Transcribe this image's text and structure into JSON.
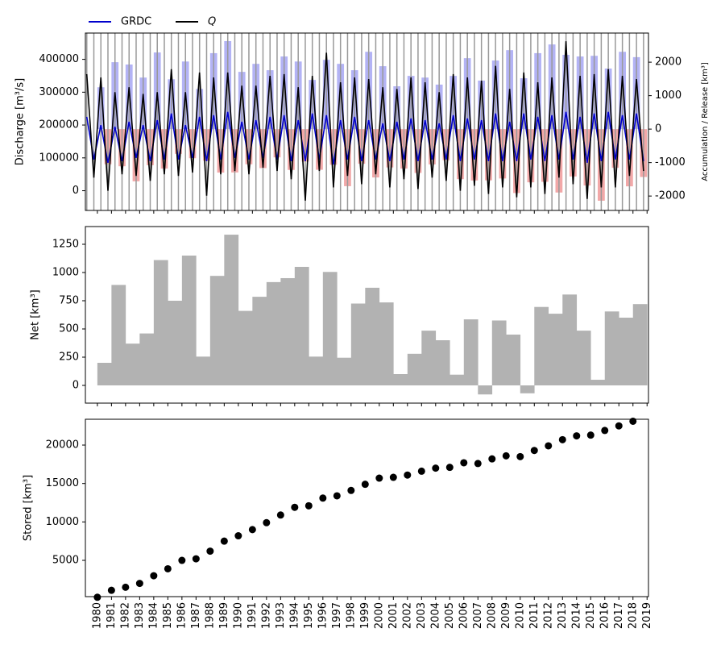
{
  "chart_data": [
    {
      "type": "line",
      "ylabel": "Discharge [m³/s]",
      "y2label": "Accumulation / Release [km³]",
      "legend": "top-left-outside",
      "xlim": [
        1979.15,
        2019.1
      ],
      "ylim": [
        -60000,
        480000
      ],
      "yticks": [
        0,
        100000,
        200000,
        300000,
        400000
      ],
      "y2lim": [
        -2430,
        2870
      ],
      "y2ticks": [
        -2000,
        -1000,
        0,
        1000,
        2000
      ],
      "season_line_color": "#999999",
      "x": [
        1979.25,
        1979.75,
        1980.25,
        1980.75,
        1981.25,
        1981.75,
        1982.25,
        1982.75,
        1983.25,
        1983.75,
        1984.25,
        1984.75,
        1985.25,
        1985.75,
        1986.25,
        1986.75,
        1987.25,
        1987.75,
        1988.25,
        1988.75,
        1989.25,
        1989.75,
        1990.25,
        1990.75,
        1991.25,
        1991.75,
        1992.25,
        1992.75,
        1993.25,
        1993.75,
        1994.25,
        1994.75,
        1995.25,
        1995.75,
        1996.25,
        1996.75,
        1997.25,
        1997.75,
        1998.25,
        1998.75,
        1999.25,
        1999.75,
        2000.25,
        2000.75,
        2001.25,
        2001.75,
        2002.25,
        2002.75,
        2003.25,
        2003.75,
        2004.25,
        2004.75,
        2005.25,
        2005.75,
        2006.25,
        2006.75,
        2007.25,
        2007.75,
        2008.25,
        2008.75,
        2009.25,
        2009.75,
        2010.25,
        2010.75,
        2011.25,
        2011.75,
        2012.25,
        2012.75,
        2013.25,
        2013.75,
        2014.25,
        2014.75,
        2015.25,
        2015.75,
        2016.25,
        2016.75,
        2017.25,
        2017.75,
        2018.25,
        2018.75
      ],
      "series": [
        {
          "name": "GRDC",
          "color": "#0000cc",
          "values": [
            225000,
            95000,
            200000,
            85000,
            195000,
            90000,
            210000,
            100000,
            200000,
            90000,
            215000,
            95000,
            235000,
            95000,
            200000,
            100000,
            225000,
            90000,
            230000,
            95000,
            240000,
            100000,
            210000,
            95000,
            215000,
            100000,
            225000,
            95000,
            230000,
            90000,
            215000,
            90000,
            235000,
            95000,
            230000,
            80000,
            215000,
            95000,
            225000,
            90000,
            215000,
            95000,
            205000,
            90000,
            210000,
            95000,
            220000,
            90000,
            215000,
            95000,
            205000,
            95000,
            230000,
            90000,
            220000,
            95000,
            215000,
            90000,
            235000,
            90000,
            210000,
            90000,
            235000,
            95000,
            225000,
            90000,
            230000,
            95000,
            240000,
            95000,
            225000,
            85000,
            235000,
            90000,
            240000,
            95000,
            230000,
            95000,
            235000,
            90000
          ]
        },
        {
          "name": "Q",
          "color": "#000000",
          "values": [
            355000,
            40000,
            345000,
            0,
            300000,
            50000,
            315000,
            45000,
            295000,
            30000,
            300000,
            50000,
            370000,
            45000,
            300000,
            55000,
            360000,
            -15000,
            345000,
            50000,
            360000,
            60000,
            320000,
            50000,
            320000,
            70000,
            350000,
            60000,
            355000,
            35000,
            315000,
            -30000,
            350000,
            60000,
            420000,
            10000,
            330000,
            45000,
            345000,
            20000,
            340000,
            50000,
            315000,
            10000,
            310000,
            35000,
            345000,
            5000,
            330000,
            40000,
            300000,
            30000,
            355000,
            0,
            345000,
            15000,
            335000,
            -10000,
            380000,
            10000,
            310000,
            -20000,
            360000,
            10000,
            330000,
            -10000,
            345000,
            40000,
            455000,
            20000,
            350000,
            -25000,
            355000,
            10000,
            370000,
            10000,
            350000,
            45000,
            340000,
            60000
          ]
        }
      ],
      "bar_x": [
        1980,
        1981,
        1982,
        1983,
        1984,
        1985,
        1986,
        1987,
        1988,
        1989,
        1990,
        1991,
        1992,
        1993,
        1994,
        1995,
        1996,
        1997,
        1998,
        1999,
        2000,
        2001,
        2002,
        2003,
        2004,
        2005,
        2006,
        2007,
        2008,
        2009,
        2010,
        2011,
        2012,
        2013,
        2014,
        2015,
        2016,
        2017,
        2018
      ],
      "bar_series": [
        {
          "color": "#b3b3f5",
          "axis": "y2",
          "values": [
            1250,
            2000,
            1930,
            1540,
            2290,
            1490,
            2020,
            1200,
            2270,
            2630,
            1710,
            1950,
            1760,
            2170,
            2020,
            1470,
            2070,
            1950,
            1760,
            2310,
            1880,
            1280,
            1590,
            1540,
            1330,
            1590,
            2120,
            1450,
            2050,
            2360,
            1520,
            2270,
            2530,
            2220,
            2170,
            2190,
            1810,
            2310,
            2150
          ]
        },
        {
          "color": "#f2a8a8",
          "axis": "y2",
          "values": [
            -1050,
            -1110,
            -1560,
            -1080,
            -1180,
            -740,
            -870,
            -945,
            -1300,
            -1295,
            -1050,
            -1165,
            -845,
            -1220,
            -970,
            -1215,
            -1065,
            -1705,
            -1035,
            -1445,
            -1145,
            -1180,
            -1310,
            -1055,
            -930,
            -1495,
            -1535,
            -1530,
            -1475,
            -1910,
            -1590,
            -1575,
            -1895,
            -1415,
            -1685,
            -2140,
            -1155,
            -1710,
            -1430
          ]
        }
      ]
    },
    {
      "type": "bar",
      "ylabel": "Net [km³]",
      "color": "#b2b2b2",
      "xlim": [
        1979.15,
        2019.1
      ],
      "ylim": [
        -157,
        1407
      ],
      "yticks": [
        0,
        250,
        500,
        750,
        1000,
        1250
      ],
      "x": [
        1980,
        1981,
        1982,
        1983,
        1984,
        1985,
        1986,
        1987,
        1988,
        1989,
        1990,
        1991,
        1992,
        1993,
        1994,
        1995,
        1996,
        1997,
        1998,
        1999,
        2000,
        2001,
        2002,
        2003,
        2004,
        2005,
        2006,
        2007,
        2008,
        2009,
        2010,
        2011,
        2012,
        2013,
        2014,
        2015,
        2016,
        2017,
        2018
      ],
      "values": [
        200,
        890,
        370,
        460,
        1110,
        750,
        1150,
        255,
        970,
        1335,
        660,
        785,
        915,
        950,
        1050,
        255,
        1005,
        245,
        725,
        865,
        735,
        100,
        280,
        485,
        400,
        95,
        585,
        -80,
        575,
        450,
        -70,
        695,
        635,
        805,
        485,
        50,
        655,
        600,
        720
      ]
    },
    {
      "type": "scatter",
      "ylabel": "Stored [km³]",
      "color": "#000000",
      "xlim": [
        1979.15,
        2019.1
      ],
      "ylim": [
        280,
        23360
      ],
      "yticks": [
        5000,
        10000,
        15000,
        20000
      ],
      "xticks": [
        1980,
        1981,
        1982,
        1983,
        1984,
        1985,
        1986,
        1987,
        1988,
        1989,
        1990,
        1991,
        1992,
        1993,
        1994,
        1995,
        1996,
        1997,
        1998,
        1999,
        2000,
        2001,
        2002,
        2003,
        2004,
        2005,
        2006,
        2007,
        2008,
        2009,
        2010,
        2011,
        2012,
        2013,
        2014,
        2015,
        2016,
        2017,
        2018,
        2019
      ],
      "x": [
        1980,
        1981,
        1982,
        1983,
        1984,
        1985,
        1986,
        1987,
        1988,
        1989,
        1990,
        1991,
        1992,
        1993,
        1994,
        1995,
        1996,
        1997,
        1998,
        1999,
        2000,
        2001,
        2002,
        2003,
        2004,
        2005,
        2006,
        2007,
        2008,
        2009,
        2010,
        2011,
        2012,
        2013,
        2014,
        2015,
        2016,
        2017,
        2018
      ],
      "values": [
        200,
        1100,
        1500,
        2000,
        3000,
        3900,
        5000,
        5200,
        6200,
        7500,
        8200,
        9000,
        9900,
        10900,
        11900,
        12100,
        13100,
        13400,
        14100,
        14900,
        15700,
        15800,
        16100,
        16600,
        17000,
        17100,
        17700,
        17600,
        18200,
        18600,
        18500,
        19300,
        19900,
        20700,
        21200,
        21300,
        21900,
        22500,
        23100
      ]
    }
  ]
}
